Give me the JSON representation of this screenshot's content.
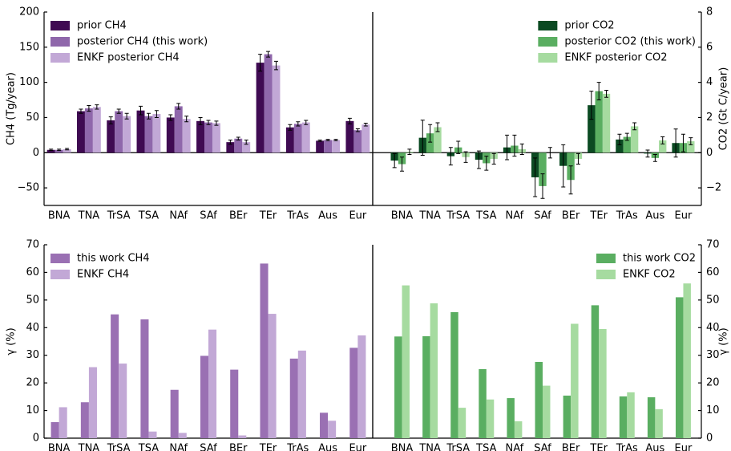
{
  "chart_data": [
    {
      "type": "bar",
      "ylabel": "CH4 (Tg/year)",
      "yaxis_side": "left",
      "legend": "upper left",
      "categories": [
        "BNA",
        "TNA",
        "TrSA",
        "TSA",
        "NAf",
        "SAf",
        "BEr",
        "TEr",
        "TrAs",
        "Aus",
        "Eur"
      ],
      "series": [
        {
          "name": "prior CH4",
          "color": "#3f0a52",
          "values": [
            4,
            59,
            46,
            60,
            50,
            45,
            15,
            128,
            36,
            17,
            45
          ],
          "errors": [
            1,
            3,
            5,
            6,
            4,
            5,
            3,
            12,
            4,
            1,
            4
          ]
        },
        {
          "name": "posterior CH4 (this work)",
          "color": "#8f67ab",
          "values": [
            4,
            63,
            59,
            52,
            66,
            43,
            20,
            140,
            41,
            18,
            32
          ],
          "errors": [
            1,
            4,
            3,
            4,
            4,
            3,
            2,
            4,
            3,
            1,
            2
          ]
        },
        {
          "name": "ENKF posterior CH4",
          "color": "#c2a8d6",
          "values": [
            5,
            65,
            52,
            55,
            48,
            42,
            15,
            124,
            43,
            18,
            40
          ],
          "errors": [
            1,
            3,
            4,
            5,
            4,
            3,
            3,
            6,
            3,
            1,
            2
          ]
        }
      ],
      "ylim": [
        -75,
        200
      ],
      "yticks": [
        {
          "value": -50,
          "label": "−50"
        },
        0,
        50,
        100,
        150,
        200
      ]
    },
    {
      "type": "bar",
      "ylabel": "CO2 (Gt C/year)",
      "yaxis_side": "right",
      "legend": "upper right",
      "categories": [
        "BNA",
        "TNA",
        "TrSA",
        "TSA",
        "NAf",
        "SAf",
        "BEr",
        "TEr",
        "TrAs",
        "Aus",
        "Eur"
      ],
      "series": [
        {
          "name": "prior CO2",
          "color": "#0b4a22",
          "values": [
            -0.45,
            0.85,
            -0.2,
            -0.4,
            0.3,
            -1.4,
            -0.75,
            2.7,
            0.75,
            -0.05,
            0.55
          ],
          "errors": [
            0.4,
            1.0,
            0.5,
            0.5,
            0.7,
            1.1,
            1.2,
            0.8,
            0.3,
            0.2,
            0.8
          ]
        },
        {
          "name": "posterior CO2 (this work)",
          "color": "#5aae61",
          "values": [
            -0.65,
            1.1,
            0.3,
            -0.6,
            0.4,
            -1.9,
            -1.55,
            3.5,
            0.9,
            -0.3,
            0.55
          ],
          "errors": [
            0.4,
            0.5,
            0.35,
            0.4,
            0.6,
            0.7,
            0.8,
            0.5,
            0.2,
            0.2,
            0.5
          ]
        },
        {
          "name": "ENKF posterior CO2",
          "color": "#a6dba0",
          "values": [
            0.05,
            1.45,
            -0.25,
            -0.35,
            0.2,
            0.0,
            -0.35,
            3.35,
            1.5,
            0.7,
            0.65
          ],
          "errors": [
            0.15,
            0.25,
            0.3,
            0.3,
            0.3,
            0.3,
            0.3,
            0.2,
            0.2,
            0.2,
            0.2
          ]
        }
      ],
      "ylim": [
        -3,
        8
      ],
      "yticks": [
        {
          "value": -2,
          "label": "−2"
        },
        0,
        2,
        4,
        6,
        8
      ]
    },
    {
      "type": "bar",
      "ylabel": "γ (%)",
      "yaxis_side": "left",
      "legend": "upper left",
      "categories": [
        "BNA",
        "TNA",
        "TrSA",
        "TSA",
        "NAf",
        "SAf",
        "BEr",
        "TEr",
        "TrAs",
        "Aus",
        "Eur"
      ],
      "series": [
        {
          "name": "this work CH4",
          "color": "#9a70b3",
          "values": [
            5.8,
            13,
            44.8,
            43,
            17.5,
            29.8,
            24.8,
            63.2,
            28.8,
            9.2,
            32.7
          ]
        },
        {
          "name": "ENKF CH4",
          "color": "#c2a8d6",
          "values": [
            11.2,
            25.7,
            27,
            2.4,
            1.9,
            39.3,
            1,
            45,
            31.7,
            6.3,
            37.2
          ]
        }
      ],
      "ylim": [
        0,
        70
      ],
      "yticks": [
        0,
        10,
        20,
        30,
        40,
        50,
        60,
        70
      ]
    },
    {
      "type": "bar",
      "ylabel": "γ (%)",
      "yaxis_side": "right",
      "legend": "upper right",
      "categories": [
        "BNA",
        "TNA",
        "TrSA",
        "TSA",
        "NAf",
        "SAf",
        "BEr",
        "TEr",
        "TrAs",
        "Aus",
        "Eur"
      ],
      "series": [
        {
          "name": "this work CO2",
          "color": "#5aae61",
          "values": [
            36.8,
            36.9,
            45.6,
            25,
            14.5,
            27.6,
            15.4,
            48.1,
            15.1,
            14.8,
            51
          ]
        },
        {
          "name": "ENKF CO2",
          "color": "#a6dba0",
          "values": [
            55.3,
            48.8,
            11,
            14,
            6.1,
            19,
            41.4,
            39.5,
            16.6,
            10.5,
            56
          ]
        }
      ],
      "ylim": [
        0,
        70
      ],
      "yticks": [
        0,
        10,
        20,
        30,
        40,
        50,
        60,
        70
      ]
    }
  ]
}
